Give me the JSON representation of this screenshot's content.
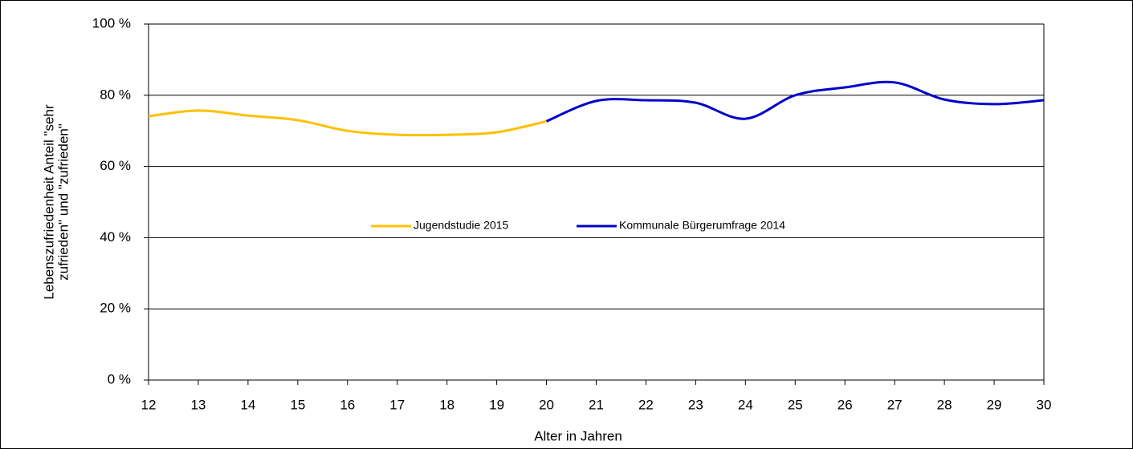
{
  "chart_data": {
    "type": "line",
    "xlabel": "Alter in Jahren",
    "ylabel": [
      "Lebenszufriedenheit Anteil \"sehr",
      "zufrieden\" und \"zufrieden\""
    ],
    "series": [
      {
        "name": "Jugendstudie 2015",
        "color": "#ffc000",
        "x": [
          12,
          13,
          14,
          15,
          16,
          17,
          18,
          19,
          20
        ],
        "values": [
          74.1,
          75.7,
          74.3,
          73,
          70,
          68.9,
          68.9,
          69.6,
          72.7
        ]
      },
      {
        "name": "Kommunale Bürgerumfrage 2014",
        "color": "#0000cc",
        "x": [
          20,
          21,
          22,
          23,
          24,
          25,
          26,
          27,
          28,
          29,
          30
        ],
        "values": [
          72.7,
          78.4,
          78.6,
          77.9,
          73.4,
          80,
          82.2,
          83.6,
          78.8,
          77.5,
          78.6
        ]
      }
    ],
    "xlim": [
      12,
      30
    ],
    "xticks": [
      12,
      13,
      14,
      15,
      16,
      17,
      18,
      19,
      20,
      21,
      22,
      23,
      24,
      25,
      26,
      27,
      28,
      29,
      30
    ],
    "ylim": [
      0,
      100
    ],
    "yticks": [
      {
        "value": 0,
        "label": "0 %"
      },
      {
        "value": 20,
        "label": "20 %"
      },
      {
        "value": 40,
        "label": "40 %"
      },
      {
        "value": 60,
        "label": "60 %"
      },
      {
        "value": 80,
        "label": "80 %"
      },
      {
        "value": 100,
        "label": "100 %"
      }
    ],
    "grid": true,
    "legend": "center",
    "smooth": true
  }
}
